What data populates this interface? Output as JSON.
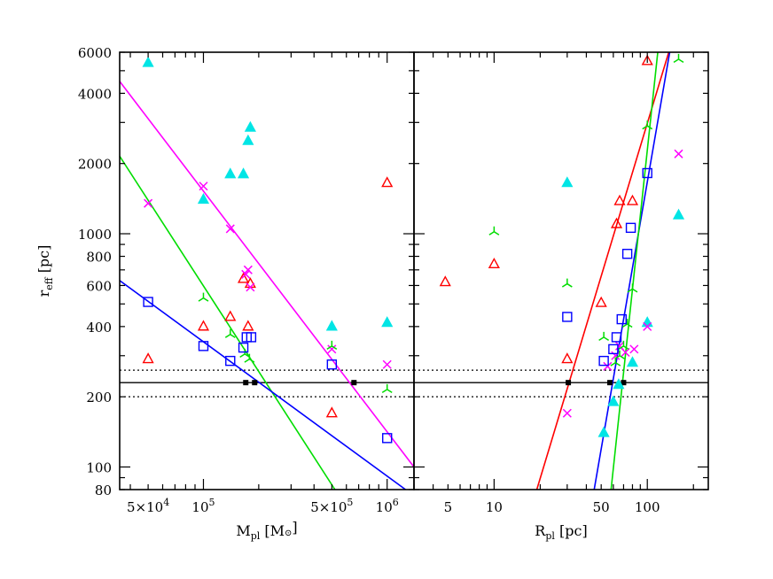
{
  "chart_data": [
    {
      "id": "left",
      "type": "scatter",
      "x_scale": "log",
      "y_scale": "log",
      "xlim": [
        35000,
        1400000
      ],
      "ylim": [
        80,
        6000
      ],
      "xlabel_main": "M",
      "xlabel_sub": "pl",
      "xlabel_unit_open": " [M",
      "xlabel_unit_close": "]",
      "ylabel_main": "r",
      "ylabel_sub": "eff",
      "ylabel_unit": " [pc]",
      "x_tick_labels": [
        {
          "x": 50000,
          "label": "5×10",
          "sup": "4"
        },
        {
          "x": 100000,
          "label": "10",
          "sup": "5"
        },
        {
          "x": 500000,
          "label": "5×10",
          "sup": "5"
        },
        {
          "x": 1000000,
          "label": "10",
          "sup": "6"
        }
      ],
      "y_tick_labels": [
        {
          "y": 80,
          "label": "80"
        },
        {
          "y": 100,
          "label": "100"
        },
        {
          "y": 200,
          "label": "200"
        },
        {
          "y": 400,
          "label": "400"
        },
        {
          "y": 600,
          "label": "600"
        },
        {
          "y": 800,
          "label": "800"
        },
        {
          "y": 1000,
          "label": "1000"
        },
        {
          "y": 2000,
          "label": "2000"
        },
        {
          "y": 4000,
          "label": "4000"
        },
        {
          "y": 6000,
          "label": "6000"
        }
      ],
      "hlines": [
        {
          "y": 230,
          "style": "solid"
        },
        {
          "y": 260,
          "style": "dotted"
        },
        {
          "y": 200,
          "style": "dotted"
        }
      ],
      "fit_lines": [
        {
          "color": "#ff00ff",
          "points": [
            [
              35000,
              4500
            ],
            [
              1400000,
              100
            ]
          ]
        },
        {
          "color": "#00dd00",
          "points": [
            [
              35000,
              2150
            ],
            [
              520000,
              80
            ]
          ]
        },
        {
          "color": "#0000ff",
          "points": [
            [
              35000,
              630
            ],
            [
              1260000,
              80
            ]
          ]
        }
      ],
      "intersections": [
        {
          "x": 170000,
          "y": 230
        },
        {
          "x": 190000,
          "y": 230
        },
        {
          "x": 660000,
          "y": 230
        }
      ],
      "series": [
        {
          "marker": "triangle-filled",
          "color": "#00e5e5",
          "points": [
            [
              50000,
              5400
            ],
            [
              100000,
              1400
            ],
            [
              140000,
              1800
            ],
            [
              165000,
              1800
            ],
            [
              175000,
              2500
            ],
            [
              180000,
              2850
            ],
            [
              500000,
              400
            ],
            [
              1000000,
              415
            ]
          ]
        },
        {
          "marker": "triangle-open",
          "color": "#ff0000",
          "points": [
            [
              50000,
              290
            ],
            [
              100000,
              400
            ],
            [
              140000,
              440
            ],
            [
              165000,
              640
            ],
            [
              175000,
              400
            ],
            [
              180000,
              610
            ],
            [
              500000,
              170
            ],
            [
              1000000,
              1650
            ]
          ]
        },
        {
          "marker": "cross",
          "color": "#ff00ff",
          "points": [
            [
              50000,
              1350
            ],
            [
              100000,
              1600
            ],
            [
              140000,
              1050
            ],
            [
              170000,
              670
            ],
            [
              175000,
              700
            ],
            [
              180000,
              590
            ],
            [
              500000,
              320
            ],
            [
              1000000,
              275
            ]
          ]
        },
        {
          "marker": "tri-star",
          "color": "#00dd00",
          "points": [
            [
              100000,
              530
            ],
            [
              140000,
              370
            ],
            [
              168000,
              305
            ],
            [
              178000,
              290
            ],
            [
              500000,
              330
            ],
            [
              1000000,
              215
            ]
          ]
        },
        {
          "marker": "square-open",
          "color": "#0000ff",
          "points": [
            [
              50000,
              510
            ],
            [
              100000,
              330
            ],
            [
              140000,
              285
            ],
            [
              165000,
              325
            ],
            [
              172000,
              360
            ],
            [
              182000,
              360
            ],
            [
              500000,
              275
            ],
            [
              1000000,
              133
            ]
          ]
        }
      ]
    },
    {
      "id": "right",
      "type": "scatter",
      "x_scale": "log",
      "y_scale": "log",
      "xlim": [
        3,
        250
      ],
      "ylim": [
        80,
        6000
      ],
      "xlabel_main": "R",
      "xlabel_sub": "pl",
      "xlabel_unit": " [pc]",
      "x_tick_labels": [
        {
          "x": 5,
          "label": "5"
        },
        {
          "x": 10,
          "label": "10"
        },
        {
          "x": 50,
          "label": "50"
        },
        {
          "x": 100,
          "label": "100"
        }
      ],
      "hlines": [
        {
          "y": 230,
          "style": "solid"
        },
        {
          "y": 260,
          "style": "dotted"
        },
        {
          "y": 200,
          "style": "dotted"
        }
      ],
      "fit_lines": [
        {
          "color": "#ff0000",
          "points": [
            [
              19,
              80
            ],
            [
              138,
              6000
            ]
          ]
        },
        {
          "color": "#0000ff",
          "points": [
            [
              45,
              80
            ],
            [
              140,
              6000
            ]
          ]
        },
        {
          "color": "#00dd00",
          "points": [
            [
              58,
              80
            ],
            [
              117,
              6000
            ]
          ]
        }
      ],
      "intersections": [
        {
          "x": 30.5,
          "y": 230
        },
        {
          "x": 57,
          "y": 230
        },
        {
          "x": 70,
          "y": 230
        }
      ],
      "series": [
        {
          "marker": "triangle-filled",
          "color": "#00e5e5",
          "points": [
            [
              30,
              1650
            ],
            [
              52,
              140
            ],
            [
              60,
              190
            ],
            [
              65,
              225
            ],
            [
              80,
              280
            ],
            [
              100,
              415
            ],
            [
              160,
              1200
            ]
          ]
        },
        {
          "marker": "triangle-open",
          "color": "#ff0000",
          "points": [
            [
              4.8,
              620
            ],
            [
              10,
              740
            ],
            [
              30,
              290
            ],
            [
              50,
              505
            ],
            [
              63,
              1100
            ],
            [
              66,
              1380
            ],
            [
              80,
              1380
            ],
            [
              100,
              5500
            ]
          ]
        },
        {
          "marker": "cross",
          "color": "#ff00ff",
          "points": [
            [
              30,
              170
            ],
            [
              55,
              270
            ],
            [
              62,
              300
            ],
            [
              66,
              330
            ],
            [
              72,
              310
            ],
            [
              82,
              320
            ],
            [
              100,
              400
            ],
            [
              160,
              2200
            ]
          ]
        },
        {
          "marker": "tri-star",
          "color": "#00dd00",
          "points": [
            [
              10,
              1020
            ],
            [
              30,
              610
            ],
            [
              52,
              360
            ],
            [
              62,
              280
            ],
            [
              66,
              300
            ],
            [
              70,
              330
            ],
            [
              74,
              410
            ],
            [
              80,
              580
            ],
            [
              100,
              2900
            ],
            [
              160,
              5600
            ]
          ]
        },
        {
          "marker": "square-open",
          "color": "#0000ff",
          "points": [
            [
              30,
              440
            ],
            [
              52,
              285
            ],
            [
              60,
              320
            ],
            [
              63,
              360
            ],
            [
              68,
              430
            ],
            [
              74,
              820
            ],
            [
              78,
              1060
            ],
            [
              100,
              1820
            ]
          ]
        }
      ]
    }
  ]
}
